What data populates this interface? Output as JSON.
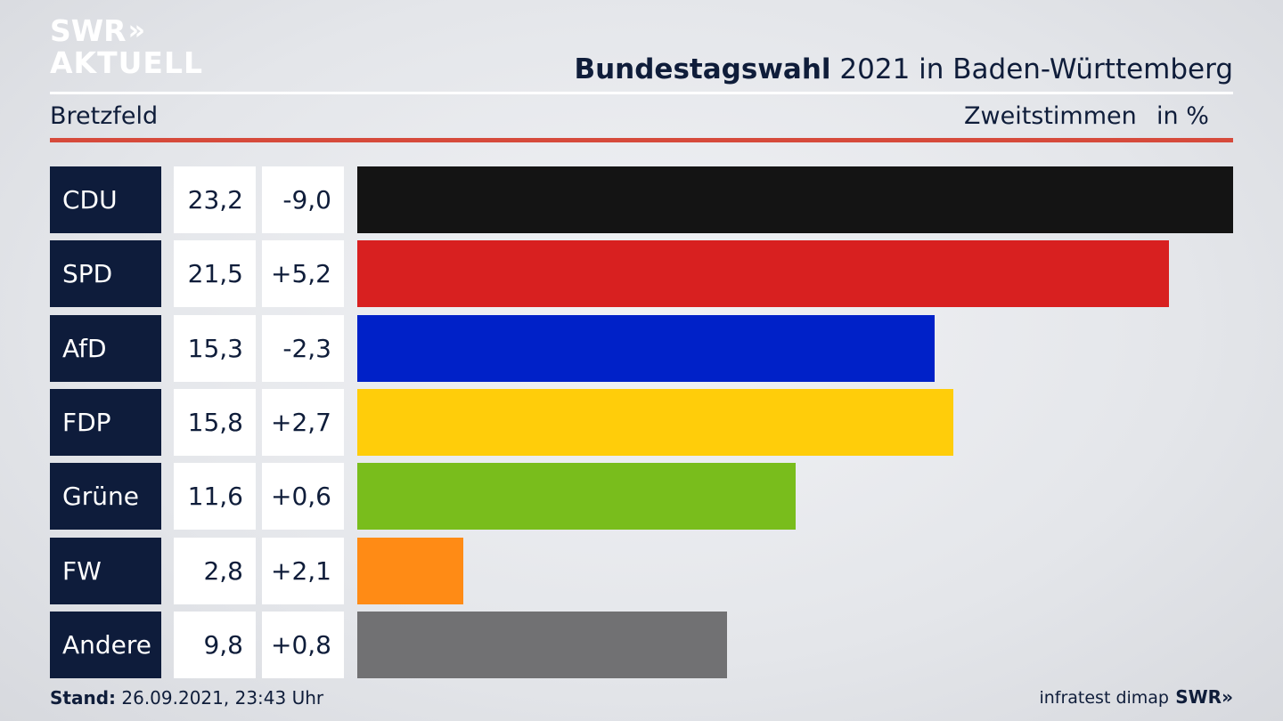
{
  "brand": {
    "line1": "SWR",
    "line2": "AKTUELL",
    "chevrons": "»"
  },
  "title": {
    "bold": "Bundestagswahl",
    "rest": " 2021 in Baden-Württemberg"
  },
  "region": "Bretzfeld",
  "metric_label": "Zweitstimmen",
  "unit_label": "in %",
  "footer": {
    "label": "Stand:",
    "value": " 26.09.2021, 23:43 Uhr"
  },
  "source": "infratest dimap",
  "source_logo": "SWR»",
  "colors": {
    "accent_rule": "#d64a3b",
    "party_box": "#0e1c3b"
  },
  "chart_data": {
    "type": "bar",
    "orientation": "horizontal",
    "categories": [
      "CDU",
      "SPD",
      "AfD",
      "FDP",
      "Grüne",
      "FW",
      "Andere"
    ],
    "values": [
      23.2,
      21.5,
      15.3,
      15.8,
      11.6,
      2.8,
      9.8
    ],
    "value_labels": [
      "23,2",
      "21,5",
      "15,3",
      "15,8",
      "11,6",
      "2,8",
      "9,8"
    ],
    "diff_labels": [
      "-9,0",
      "+5,2",
      "-2,3",
      "+2,7",
      "+0,6",
      "+2,1",
      "+0,8"
    ],
    "diffs": [
      -9.0,
      5.2,
      -2.3,
      2.7,
      0.6,
      2.1,
      0.8
    ],
    "bar_colors": [
      "#141414",
      "#d82020",
      "#0021c8",
      "#ffcd0a",
      "#79bd1c",
      "#ff8b15",
      "#717173"
    ],
    "xlim": [
      0,
      23.2
    ]
  }
}
